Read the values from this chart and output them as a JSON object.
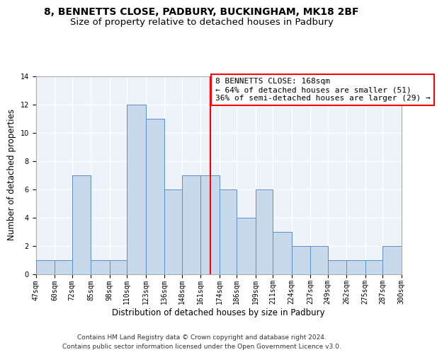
{
  "title_line1": "8, BENNETTS CLOSE, PADBURY, BUCKINGHAM, MK18 2BF",
  "title_line2": "Size of property relative to detached houses in Padbury",
  "xlabel": "Distribution of detached houses by size in Padbury",
  "ylabel": "Number of detached properties",
  "bin_edges": [
    47,
    60,
    72,
    85,
    98,
    110,
    123,
    136,
    148,
    161,
    174,
    186,
    199,
    211,
    224,
    237,
    249,
    262,
    275,
    287,
    300
  ],
  "bar_heights": [
    1,
    1,
    7,
    1,
    1,
    12,
    11,
    6,
    7,
    7,
    6,
    4,
    6,
    3,
    2,
    2,
    1,
    1,
    1,
    2
  ],
  "bar_color": "#c9d9ec",
  "bar_edge_color": "#5b8ec2",
  "reference_line_x": 168,
  "reference_line_color": "red",
  "annotation_text": "8 BENNETTS CLOSE: 168sqm\n← 64% of detached houses are smaller (51)\n36% of semi-detached houses are larger (29) →",
  "annotation_box_color": "white",
  "annotation_box_edge_color": "red",
  "ylim": [
    0,
    14
  ],
  "yticks": [
    0,
    2,
    4,
    6,
    8,
    10,
    12,
    14
  ],
  "footer_line1": "Contains HM Land Registry data © Crown copyright and database right 2024.",
  "footer_line2": "Contains public sector information licensed under the Open Government Licence v3.0.",
  "background_color": "#eef2f9",
  "grid_color": "white",
  "title_fontsize": 10,
  "subtitle_fontsize": 9.5,
  "axis_label_fontsize": 8.5,
  "tick_fontsize": 7,
  "annotation_fontsize": 8,
  "footer_fontsize": 6.5,
  "title_font": "DejaVu Sans",
  "mono_font": "DejaVu Sans Mono"
}
